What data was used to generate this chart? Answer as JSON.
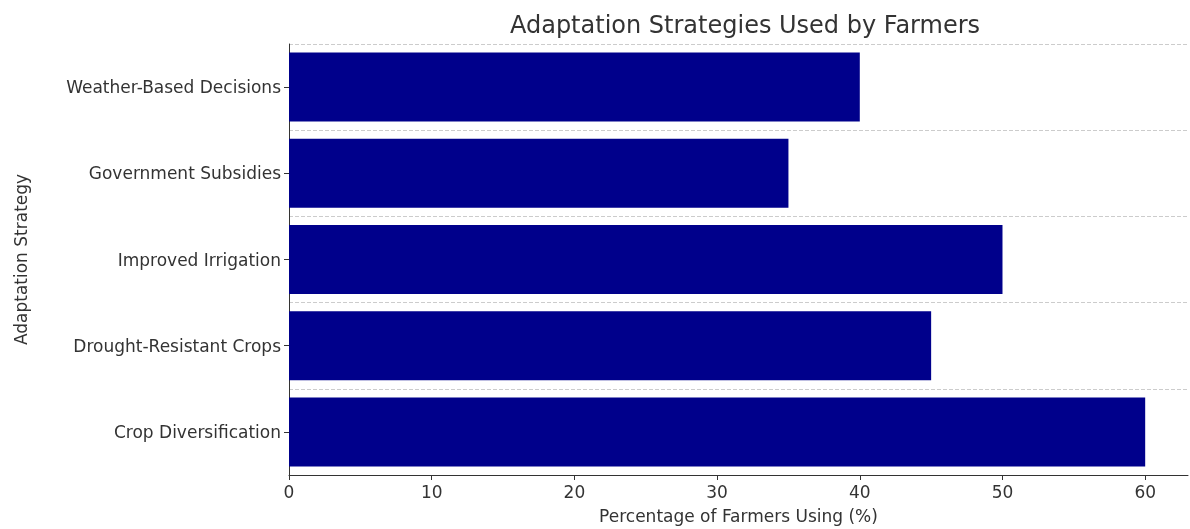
{
  "chart_data": {
    "type": "bar",
    "orientation": "horizontal",
    "title": "Adaptation Strategies Used by Farmers",
    "xlabel": "Percentage of Farmers Using (%)",
    "ylabel": "Adaptation Strategy",
    "categories": [
      "Weather-Based Decisions",
      "Government Subsidies",
      "Improved Irrigation",
      "Drought-Resistant Crops",
      "Crop Diversification"
    ],
    "values": [
      40,
      35,
      50,
      45,
      60
    ],
    "color": "#00008b",
    "xlim": [
      0,
      63
    ],
    "xticks": [
      0,
      10,
      20,
      30,
      40,
      50,
      60
    ],
    "grid": "y"
  }
}
